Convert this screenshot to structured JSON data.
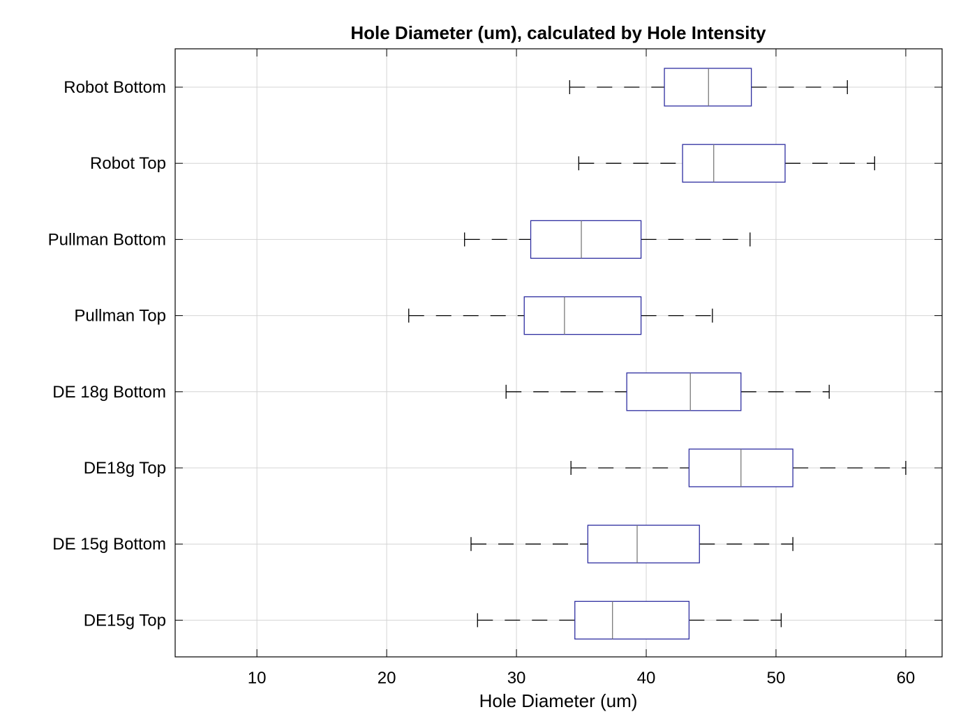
{
  "chart_data": {
    "type": "boxplot",
    "orientation": "horizontal",
    "title": "Hole Diameter (um), calculated by Hole Intensity",
    "xlabel": "Hole Diameter (um)",
    "ylabel": "",
    "xlim": [
      3.7,
      62.8
    ],
    "xticks": [
      10,
      20,
      30,
      40,
      50,
      60
    ],
    "grid": true,
    "colors": {
      "box": "#2e2ea0",
      "median": "#7a7a7a",
      "whisker": "#000000",
      "grid": "#d4d4d4",
      "axes": "#000000"
    },
    "categories": [
      "Robot Bottom",
      "Robot Top",
      "Pullman Bottom",
      "Pullman Top",
      "DE 18g Bottom",
      "DE18g Top",
      "DE 15g Bottom",
      "DE15g Top"
    ],
    "series": [
      {
        "category": "Robot Bottom",
        "whisker_low": 34.1,
        "q1": 41.4,
        "median": 44.8,
        "q3": 48.1,
        "whisker_high": 55.5
      },
      {
        "category": "Robot Top",
        "whisker_low": 34.8,
        "q1": 42.8,
        "median": 45.2,
        "q3": 50.7,
        "whisker_high": 57.6
      },
      {
        "category": "Pullman Bottom",
        "whisker_low": 26.0,
        "q1": 31.1,
        "median": 35.0,
        "q3": 39.6,
        "whisker_high": 48.0
      },
      {
        "category": "Pullman Top",
        "whisker_low": 21.7,
        "q1": 30.6,
        "median": 33.7,
        "q3": 39.6,
        "whisker_high": 45.1
      },
      {
        "category": "DE 18g Bottom",
        "whisker_low": 29.2,
        "q1": 38.5,
        "median": 43.4,
        "q3": 47.3,
        "whisker_high": 54.1
      },
      {
        "category": "DE18g Top",
        "whisker_low": 34.2,
        "q1": 43.3,
        "median": 47.3,
        "q3": 51.3,
        "whisker_high": 60.0
      },
      {
        "category": "DE 15g Bottom",
        "whisker_low": 26.5,
        "q1": 35.5,
        "median": 39.3,
        "q3": 44.1,
        "whisker_high": 51.3
      },
      {
        "category": "DE15g Top",
        "whisker_low": 27.0,
        "q1": 34.5,
        "median": 37.4,
        "q3": 43.3,
        "whisker_high": 50.4
      }
    ]
  }
}
